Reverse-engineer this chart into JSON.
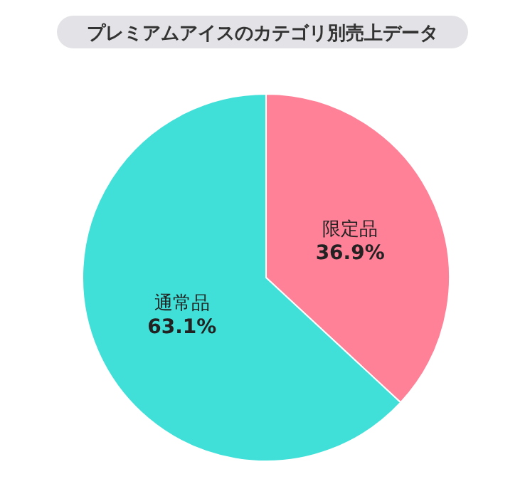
{
  "chart_data": {
    "type": "pie",
    "title": "プレミアムアイスのカテゴリ別売上データ",
    "categories": [
      "限定品",
      "通常品"
    ],
    "values": [
      36.9,
      63.1
    ],
    "colors": [
      "#ff8198",
      "#40e0d8"
    ],
    "value_labels": [
      "36.9%",
      "63.1%"
    ],
    "legend": false
  }
}
